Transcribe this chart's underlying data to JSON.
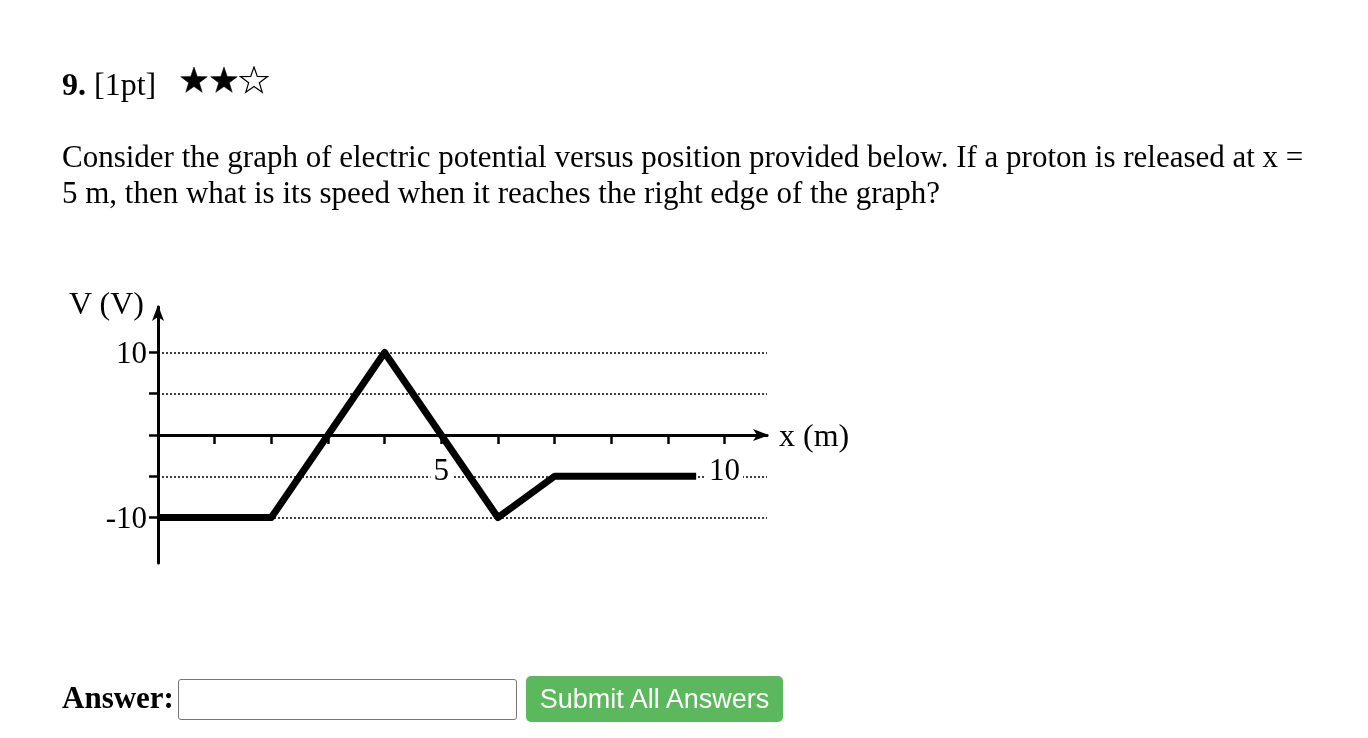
{
  "chart_data": {
    "type": "line",
    "title": "9. [1pt]",
    "subtitle": "Consider the graph of electric potential versus position provided below. If a proton is released at x = 5 m, then what is its speed when it reaches the right edge of the graph?",
    "xlabel": "x (m)",
    "ylabel": "V (V)",
    "x": [
      0,
      2,
      4,
      6,
      7,
      9.5
    ],
    "values": [
      -10,
      -10,
      10,
      -10,
      -5,
      -5
    ],
    "color": "#000000",
    "xlim": [
      0,
      10.75
    ],
    "ylim": [
      -15.5,
      15.5
    ],
    "xticks": [
      {
        "value": 1,
        "label": null
      },
      {
        "value": 2,
        "label": null
      },
      {
        "value": 3,
        "label": null
      },
      {
        "value": 4,
        "label": null
      },
      5,
      {
        "value": 6,
        "label": null
      },
      {
        "value": 7,
        "label": null
      },
      {
        "value": 8,
        "label": null
      },
      {
        "value": 9,
        "label": null
      },
      10
    ],
    "yticks": [
      -10,
      {
        "value": -5,
        "label": null
      },
      {
        "value": 0,
        "label": null
      },
      {
        "value": 5,
        "label": null
      },
      10
    ],
    "grid": "y",
    "marker": "none",
    "annotations": [
      "Answer:",
      "Submit All Answers"
    ]
  }
}
